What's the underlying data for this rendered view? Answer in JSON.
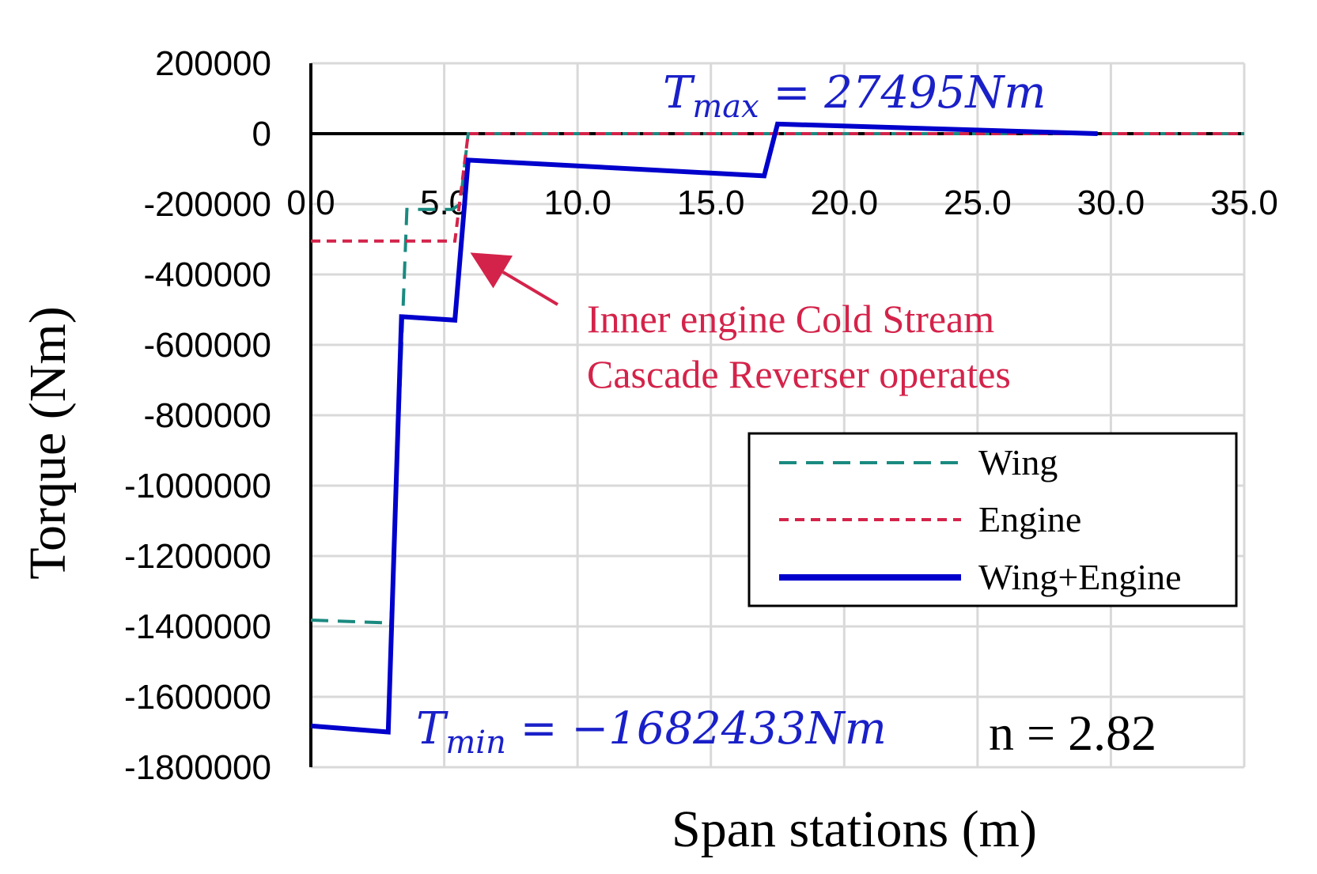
{
  "chart_data": {
    "type": "line",
    "xlabel": "Span stations (m)",
    "ylabel": "Torque (Nm)",
    "xlim": [
      0,
      35
    ],
    "ylim": [
      -1800000,
      200000
    ],
    "x_ticks": [
      "0.0",
      "5.0",
      "10.0",
      "15.0",
      "20.0",
      "25.0",
      "30.0",
      "35.0"
    ],
    "y_ticks": [
      "200000",
      "0",
      "-200000",
      "-400000",
      "-600000",
      "-800000",
      "-1000000",
      "-1200000",
      "-1400000",
      "-1600000",
      "-1800000"
    ],
    "grid": true,
    "legend_position": "right",
    "series": [
      {
        "name": "Wing",
        "color": "#1a8a80",
        "dash": "dashed",
        "x": [
          0.0,
          2.95,
          3.0,
          3.6,
          5.3,
          5.6,
          5.9,
          35.0
        ],
        "y": [
          -1382000,
          -1390000,
          -1400000,
          -215000,
          -215000,
          -200000,
          0,
          0
        ]
      },
      {
        "name": "Engine",
        "color": "#d4234a",
        "dash": "dotted",
        "x": [
          0.0,
          5.4,
          5.9,
          35.0
        ],
        "y": [
          -305000,
          -305000,
          0,
          0
        ]
      },
      {
        "name": "Wing+Engine",
        "color": "#0000cc",
        "dash": "solid",
        "x": [
          0.0,
          2.9,
          3.4,
          5.4,
          5.9,
          17.0,
          17.5,
          29.5
        ],
        "y": [
          -1682433,
          -1700000,
          -520000,
          -530000,
          -75000,
          -120000,
          27495,
          0
        ]
      }
    ],
    "annotations": {
      "arrow_text_line1": "Inner engine Cold Stream",
      "arrow_text_line2": "Cascade Reverser operates",
      "tmax_T": "T",
      "tmax_sub": "max",
      "tmax_value": " = 27495Nm",
      "tmin_T": "T",
      "tmin_sub": "min",
      "tmin_value": " = −1682433Nm",
      "n_label": "n = 2.82",
      "arrow_target": [
        5.8,
        -320000
      ]
    }
  }
}
